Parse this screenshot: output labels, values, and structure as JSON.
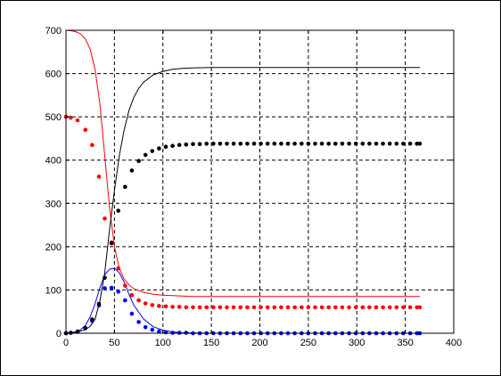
{
  "chart_data": {
    "type": "line",
    "xlim": [
      0,
      400
    ],
    "ylim": [
      0,
      700
    ],
    "x_ticks": [
      0,
      50,
      100,
      150,
      200,
      250,
      300,
      350,
      400
    ],
    "y_ticks": [
      0,
      100,
      200,
      300,
      400,
      500,
      600,
      700
    ],
    "grid": true,
    "legend": "none",
    "colors": {
      "susceptible": "#ff0000",
      "infected": "#0000ff",
      "recovered": "#000000"
    },
    "lines": [
      {
        "key": "susceptible",
        "x": [
          0,
          5,
          10,
          15,
          20,
          25,
          30,
          35,
          40,
          45,
          50,
          55,
          60,
          65,
          70,
          80,
          90,
          100,
          110,
          120,
          130,
          150,
          200,
          250,
          300,
          365
        ],
        "y": [
          700,
          699,
          697,
          692,
          680,
          656,
          610,
          530,
          410,
          290,
          200,
          150,
          125,
          112,
          103,
          94,
          90,
          88,
          87,
          86,
          85,
          85,
          85,
          85,
          85,
          85
        ]
      },
      {
        "key": "infected",
        "x": [
          0,
          5,
          10,
          15,
          20,
          25,
          30,
          35,
          40,
          45,
          50,
          55,
          60,
          65,
          70,
          80,
          90,
          100,
          110,
          120,
          150,
          200,
          250,
          300,
          365
        ],
        "y": [
          0,
          1,
          3,
          8,
          18,
          38,
          68,
          105,
          135,
          148,
          150,
          140,
          118,
          90,
          65,
          33,
          15,
          7,
          3,
          1,
          0,
          0,
          0,
          0,
          0
        ]
      },
      {
        "key": "recovered",
        "x": [
          0,
          10,
          20,
          25,
          30,
          35,
          40,
          45,
          50,
          55,
          60,
          65,
          70,
          75,
          80,
          90,
          100,
          110,
          120,
          130,
          150,
          200,
          250,
          300,
          365
        ],
        "y": [
          0,
          2,
          8,
          16,
          32,
          75,
          140,
          240,
          330,
          410,
          470,
          515,
          545,
          566,
          580,
          597,
          605,
          610,
          612,
          613,
          614,
          614,
          614,
          614,
          614
        ]
      }
    ],
    "dot_series": [
      {
        "key": "susceptible",
        "x": [
          0,
          5,
          12,
          20,
          27,
          34,
          40,
          47,
          54,
          61,
          68,
          75,
          82,
          89,
          96,
          103,
          110,
          117,
          124,
          131,
          138,
          145,
          152,
          159,
          166,
          173,
          180,
          187,
          194,
          201,
          208,
          215,
          222,
          229,
          236,
          243,
          250,
          257,
          264,
          271,
          278,
          285,
          292,
          299,
          306,
          313,
          320,
          327,
          334,
          341,
          348,
          355,
          362,
          365
        ],
        "y": [
          500,
          498,
          492,
          470,
          435,
          362,
          265,
          210,
          150,
          110,
          88,
          76,
          69,
          65,
          63,
          62,
          61,
          61,
          60,
          60,
          60,
          60,
          60,
          60,
          60,
          60,
          60,
          60,
          60,
          60,
          60,
          60,
          60,
          60,
          60,
          60,
          60,
          60,
          60,
          60,
          60,
          60,
          60,
          60,
          60,
          60,
          60,
          60,
          60,
          60,
          60,
          60,
          60,
          60
        ]
      },
      {
        "key": "infected",
        "x": [
          0,
          5,
          12,
          20,
          27,
          34,
          40,
          47,
          54,
          61,
          68,
          75,
          82,
          89,
          96,
          103,
          110,
          117,
          124,
          131,
          138,
          145,
          152,
          159,
          166,
          173,
          180,
          187,
          194,
          201,
          208,
          215,
          222,
          229,
          236,
          243,
          250,
          257,
          264,
          271,
          278,
          285,
          292,
          299,
          306,
          313,
          320,
          327,
          334,
          341,
          348,
          355,
          362,
          365
        ],
        "y": [
          0,
          1,
          3,
          12,
          28,
          64,
          104,
          105,
          96,
          76,
          45,
          26,
          14,
          8,
          4,
          2,
          1,
          1,
          1,
          0,
          0,
          0,
          0,
          0,
          0,
          0,
          0,
          0,
          0,
          0,
          0,
          0,
          0,
          0,
          0,
          0,
          0,
          0,
          0,
          0,
          0,
          0,
          0,
          0,
          0,
          0,
          0,
          0,
          0,
          0,
          0,
          0,
          0,
          0
        ]
      },
      {
        "key": "recovered",
        "x": [
          0,
          5,
          12,
          20,
          27,
          34,
          40,
          47,
          54,
          61,
          68,
          75,
          82,
          89,
          96,
          103,
          110,
          117,
          124,
          131,
          138,
          145,
          152,
          159,
          166,
          173,
          180,
          187,
          194,
          201,
          208,
          215,
          222,
          229,
          236,
          243,
          250,
          257,
          264,
          271,
          278,
          285,
          292,
          299,
          306,
          313,
          320,
          327,
          334,
          341,
          348,
          355,
          362,
          365
        ],
        "y": [
          0,
          1,
          4,
          12,
          32,
          68,
          128,
          208,
          283,
          338,
          376,
          398,
          412,
          421,
          427,
          431,
          433,
          435,
          436,
          437,
          437,
          438,
          438,
          438,
          438,
          438,
          438,
          438,
          438,
          438,
          438,
          438,
          438,
          438,
          438,
          438,
          438,
          438,
          438,
          438,
          438,
          438,
          438,
          438,
          438,
          438,
          438,
          438,
          438,
          438,
          438,
          438,
          438,
          438
        ]
      }
    ]
  }
}
